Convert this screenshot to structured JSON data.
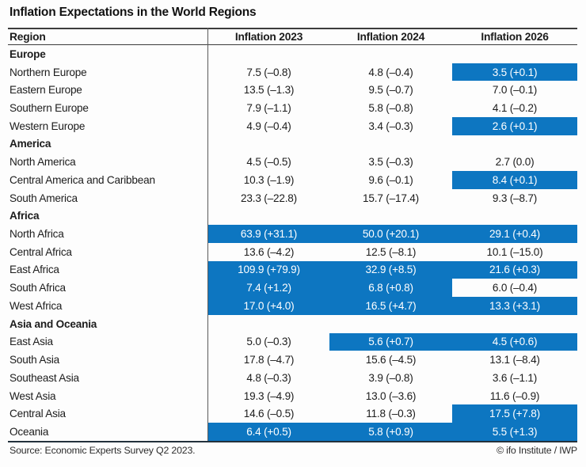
{
  "chart_data": {
    "type": "table",
    "title": "Inflation Expectations in the World Regions",
    "columns": [
      "Region",
      "Inflation 2023",
      "Inflation 2024",
      "Inflation 2026"
    ],
    "highlight_color": "#0d76c1",
    "highlight_meaning": "blue cells shown with white text",
    "sections": [
      {
        "group": "Europe",
        "rows": [
          {
            "region": "Northern Europe",
            "values": [
              "7.5 (–0.8)",
              "4.8 (–0.4)",
              "3.5 (+0.1)"
            ],
            "highlights": [
              false,
              false,
              true
            ]
          },
          {
            "region": "Eastern Europe",
            "values": [
              "13.5 (–1.3)",
              "9.5 (–0.7)",
              "7.0 (–0.1)"
            ],
            "highlights": [
              false,
              false,
              false
            ]
          },
          {
            "region": "Southern Europe",
            "values": [
              "7.9 (–1.1)",
              "5.8 (–0.8)",
              "4.1 (–0.2)"
            ],
            "highlights": [
              false,
              false,
              false
            ]
          },
          {
            "region": "Western Europe",
            "values": [
              "4.9 (–0.4)",
              "3.4 (–0.3)",
              "2.6 (+0.1)"
            ],
            "highlights": [
              false,
              false,
              true
            ]
          }
        ]
      },
      {
        "group": "America",
        "rows": [
          {
            "region": "North America",
            "values": [
              "4.5 (–0.5)",
              "3.5 (–0.3)",
              "2.7 (0.0)"
            ],
            "highlights": [
              false,
              false,
              false
            ]
          },
          {
            "region": "Central America and Caribbean",
            "values": [
              "10.3 (–1.9)",
              "9.6 (–0.1)",
              "8.4 (+0.1)"
            ],
            "highlights": [
              false,
              false,
              true
            ]
          },
          {
            "region": "South America",
            "values": [
              "23.3 (–22.8)",
              "15.7 (–17.4)",
              "9.3 (–8.7)"
            ],
            "highlights": [
              false,
              false,
              false
            ]
          }
        ]
      },
      {
        "group": "Africa",
        "rows": [
          {
            "region": "North Africa",
            "values": [
              "63.9 (+31.1)",
              "50.0 (+20.1)",
              "29.1 (+0.4)"
            ],
            "highlights": [
              true,
              true,
              true
            ]
          },
          {
            "region": "Central Africa",
            "values": [
              "13.6 (–4.2)",
              "12.5 (–8.1)",
              "10.1 (–15.0)"
            ],
            "highlights": [
              false,
              false,
              false
            ]
          },
          {
            "region": "East Africa",
            "values": [
              "109.9 (+79.9)",
              "32.9 (+8.5)",
              "21.6 (+0.3)"
            ],
            "highlights": [
              true,
              true,
              true
            ]
          },
          {
            "region": "South Africa",
            "values": [
              "7.4 (+1.2)",
              "6.8 (+0.8)",
              "6.0 (–0.4)"
            ],
            "highlights": [
              true,
              true,
              false
            ]
          },
          {
            "region": "West Africa",
            "values": [
              "17.0 (+4.0)",
              "16.5 (+4.7)",
              "13.3 (+3.1)"
            ],
            "highlights": [
              true,
              true,
              true
            ]
          }
        ]
      },
      {
        "group": "Asia and Oceania",
        "rows": [
          {
            "region": "East Asia",
            "values": [
              "5.0 (–0.3)",
              "5.6 (+0.7)",
              "4.5 (+0.6)"
            ],
            "highlights": [
              false,
              true,
              true
            ]
          },
          {
            "region": "South Asia",
            "values": [
              "17.8 (–4.7)",
              "15.6 (–4.5)",
              "13.1 (–8.4)"
            ],
            "highlights": [
              false,
              false,
              false
            ]
          },
          {
            "region": "Southeast Asia",
            "values": [
              "4.8 (–0.3)",
              "3.9 (–0.8)",
              "3.6 (–1.1)"
            ],
            "highlights": [
              false,
              false,
              false
            ]
          },
          {
            "region": "West Asia",
            "values": [
              "19.3 (–4.9)",
              "13.0 (–3.6)",
              "11.6 (–0.9)"
            ],
            "highlights": [
              false,
              false,
              false
            ]
          },
          {
            "region": "Central Asia",
            "values": [
              "14.6 (–0.5)",
              "11.8 (–0.3)",
              "17.5 (+7.8)"
            ],
            "highlights": [
              false,
              false,
              true
            ]
          },
          {
            "region": "Oceania",
            "values": [
              "6.4 (+0.5)",
              "5.8 (+0.9)",
              "5.5 (+1.3)"
            ],
            "highlights": [
              true,
              true,
              true
            ]
          }
        ]
      }
    ]
  },
  "footer": {
    "source": "Source: Economic Experts Survey Q2 2023.",
    "credit": "© ifo Institute / IWP"
  }
}
